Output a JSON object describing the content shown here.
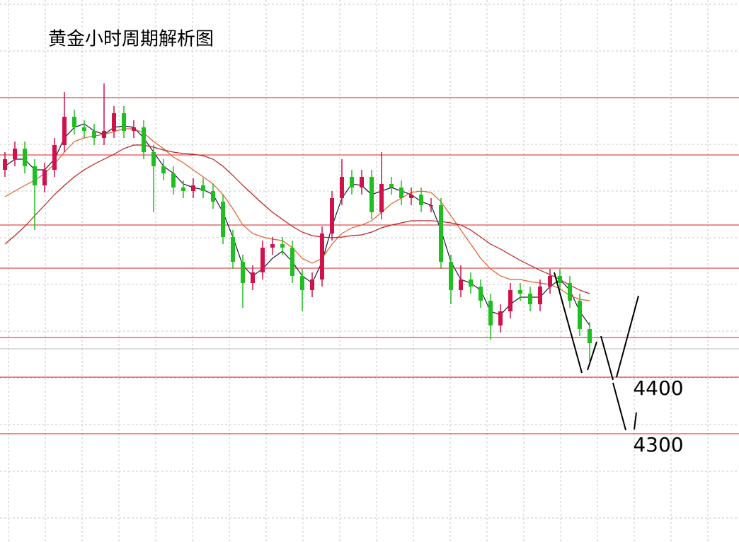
{
  "chart_data": {
    "type": "candlestick",
    "title": "黄金小时周期解析图",
    "ylim": [
      4108.75,
      5066.25
    ],
    "up_color": "#d0114a",
    "down_color": "#1fbf1f",
    "level_color": "#d81e1e",
    "last_price_color": "#bdbdbd",
    "last_price": 4450,
    "levels": [
      4893.75,
      4792.5,
      4668.75,
      4592.5,
      4470,
      {
        "value": 4400,
        "label": "4400"
      },
      {
        "value": 4300,
        "label": "4300"
      }
    ],
    "open": [
      4766.25,
      4785,
      4803.75,
      4772.5,
      4738.75,
      4766.25,
      4810,
      4860,
      4841.25,
      4835,
      4822.5,
      4835,
      4866.25,
      4835,
      4841.25,
      4797.5,
      4772.5,
      4760,
      4735,
      4728.75,
      4738.75,
      4728.75,
      4710,
      4647.5,
      4603.75,
      4566.25,
      4585,
      4628.75,
      4635,
      4628.75,
      4578.75,
      4553.75,
      4572.5,
      4653.75,
      4716.25,
      4753.75,
      4735,
      4753.75,
      4691.25,
      4741.25,
      4735,
      4716.25,
      4722.5,
      4703.75,
      4703.75,
      4603.75,
      4553.75,
      4572.5,
      4560,
      4535,
      4491.25,
      4516.25,
      4553.75,
      4547.5,
      4528.75,
      4560,
      4578.75,
      4566.25,
      4535,
      4485
    ],
    "high": [
      4797.5,
      4816.25,
      4816.25,
      4785,
      4778.75,
      4822.5,
      4903.75,
      4872.5,
      4853.75,
      4847.5,
      4918.75,
      4878.75,
      4878.75,
      4853.75,
      4853.75,
      4810,
      4785,
      4772.5,
      4747.5,
      4751.25,
      4751.25,
      4741.25,
      4722.5,
      4660,
      4616.25,
      4597.5,
      4641.25,
      4647.5,
      4647.5,
      4641.25,
      4591.25,
      4585,
      4666.25,
      4728.75,
      4785,
      4766.25,
      4766.25,
      4766.25,
      4797.5,
      4753.75,
      4747.5,
      4735,
      4735,
      4716.25,
      4716.25,
      4616.25,
      4597.5,
      4585,
      4572.5,
      4547.5,
      4528.75,
      4566.25,
      4566.25,
      4560,
      4572.5,
      4591.25,
      4591.25,
      4578.75,
      4547.5,
      4497.5
    ],
    "low": [
      4753.75,
      4772.5,
      4760,
      4660,
      4726.25,
      4753.75,
      4797.5,
      4828.75,
      4822.5,
      4810,
      4810,
      4822.5,
      4822.5,
      4822.5,
      4785,
      4691.25,
      4747.5,
      4722.5,
      4716.25,
      4716.25,
      4716.25,
      4697.5,
      4635,
      4591.25,
      4522.5,
      4553.75,
      4572.5,
      4616.25,
      4616.25,
      4566.25,
      4516.25,
      4541.25,
      4560,
      4641.25,
      4703.75,
      4722.5,
      4722.5,
      4678.75,
      4678.75,
      4722.5,
      4703.75,
      4703.75,
      4691.25,
      4691.25,
      4591.25,
      4528.75,
      4541.25,
      4547.5,
      4522.5,
      4466.25,
      4478.75,
      4503.75,
      4535,
      4516.25,
      4516.25,
      4547.5,
      4553.75,
      4522.5,
      4472.5,
      4428.75
    ],
    "close": [
      4785,
      4803.75,
      4772.5,
      4738.75,
      4766.25,
      4810,
      4860,
      4841.25,
      4835,
      4822.5,
      4835,
      4866.25,
      4835,
      4841.25,
      4797.5,
      4772.5,
      4760,
      4735,
      4728.75,
      4738.75,
      4728.75,
      4710,
      4647.5,
      4603.75,
      4566.25,
      4585,
      4628.75,
      4635,
      4628.75,
      4578.75,
      4553.75,
      4572.5,
      4653.75,
      4716.25,
      4753.75,
      4735,
      4753.75,
      4691.25,
      4741.25,
      4735,
      4716.25,
      4722.5,
      4703.75,
      4703.75,
      4603.75,
      4553.75,
      4572.5,
      4560,
      4535,
      4491.25,
      4516.25,
      4553.75,
      4547.5,
      4528.75,
      4560,
      4578.75,
      4566.25,
      4535,
      4485,
      4460
    ],
    "moving_averages": [
      {
        "color": "#1a1a3a",
        "values": [
          4772.5,
          4785,
          4785,
          4766.25,
          4766.25,
          4785,
          4822.5,
          4841.25,
          4847.5,
          4835,
          4828.75,
          4841.25,
          4843.75,
          4841.25,
          4822.5,
          4797.5,
          4772.5,
          4760,
          4741.25,
          4735,
          4731.25,
          4722.5,
          4691.25,
          4647.5,
          4597.5,
          4578.75,
          4591.25,
          4610,
          4622.5,
          4603.75,
          4578.75,
          4566.25,
          4603.75,
          4666.25,
          4716.25,
          4741.25,
          4738.75,
          4722.5,
          4728.75,
          4735,
          4728.75,
          4722.5,
          4710,
          4703.75,
          4660,
          4603.75,
          4572.5,
          4566.25,
          4553.75,
          4516.25,
          4510,
          4528.75,
          4541.25,
          4541.25,
          4541.25,
          4560,
          4572.5,
          4553.75,
          4516.25,
          4491.25
        ]
      },
      {
        "color": "#e0602a",
        "values": [
          4718.75,
          4728.75,
          4738.75,
          4747.5,
          4760,
          4776.25,
          4797.5,
          4816.25,
          4822.5,
          4826.25,
          4828.75,
          4833.75,
          4838.75,
          4838.75,
          4831.25,
          4816.25,
          4803.75,
          4788.75,
          4778.75,
          4766.25,
          4753.75,
          4741.25,
          4722.5,
          4697.5,
          4668.75,
          4653.75,
          4647.5,
          4643.75,
          4641.25,
          4628.75,
          4610,
          4601.25,
          4610,
          4635,
          4653.75,
          4663.75,
          4668.75,
          4676.25,
          4691.25,
          4706.25,
          4716.25,
          4726.25,
          4728.75,
          4726.25,
          4710,
          4685,
          4660,
          4635,
          4610,
          4591.25,
          4578.75,
          4572.5,
          4572.5,
          4568.75,
          4566.25,
          4563.75,
          4556.25,
          4543.75,
          4537.5,
          4535
        ]
      },
      {
        "color": "#b82020",
        "values": [
          4635,
          4650,
          4666.25,
          4685,
          4703.75,
          4722.5,
          4738.75,
          4753.75,
          4766.25,
          4776.25,
          4785,
          4793.75,
          4803.75,
          4810,
          4810,
          4806.25,
          4801.25,
          4797.5,
          4795,
          4793.75,
          4791.25,
          4785,
          4772.5,
          4756.25,
          4738.75,
          4722.5,
          4706.25,
          4691.25,
          4678.75,
          4666.25,
          4656.25,
          4650,
          4647.5,
          4646.25,
          4647.5,
          4650,
          4651.25,
          4656.25,
          4663.75,
          4668.75,
          4672.5,
          4676.25,
          4676.25,
          4676.25,
          4675,
          4672.5,
          4668.75,
          4660,
          4647.5,
          4635,
          4626.25,
          4616.25,
          4606.25,
          4597.5,
          4588.75,
          4581.25,
          4572.5,
          4562.5,
          4553.75,
          4547.5
        ]
      }
    ]
  }
}
